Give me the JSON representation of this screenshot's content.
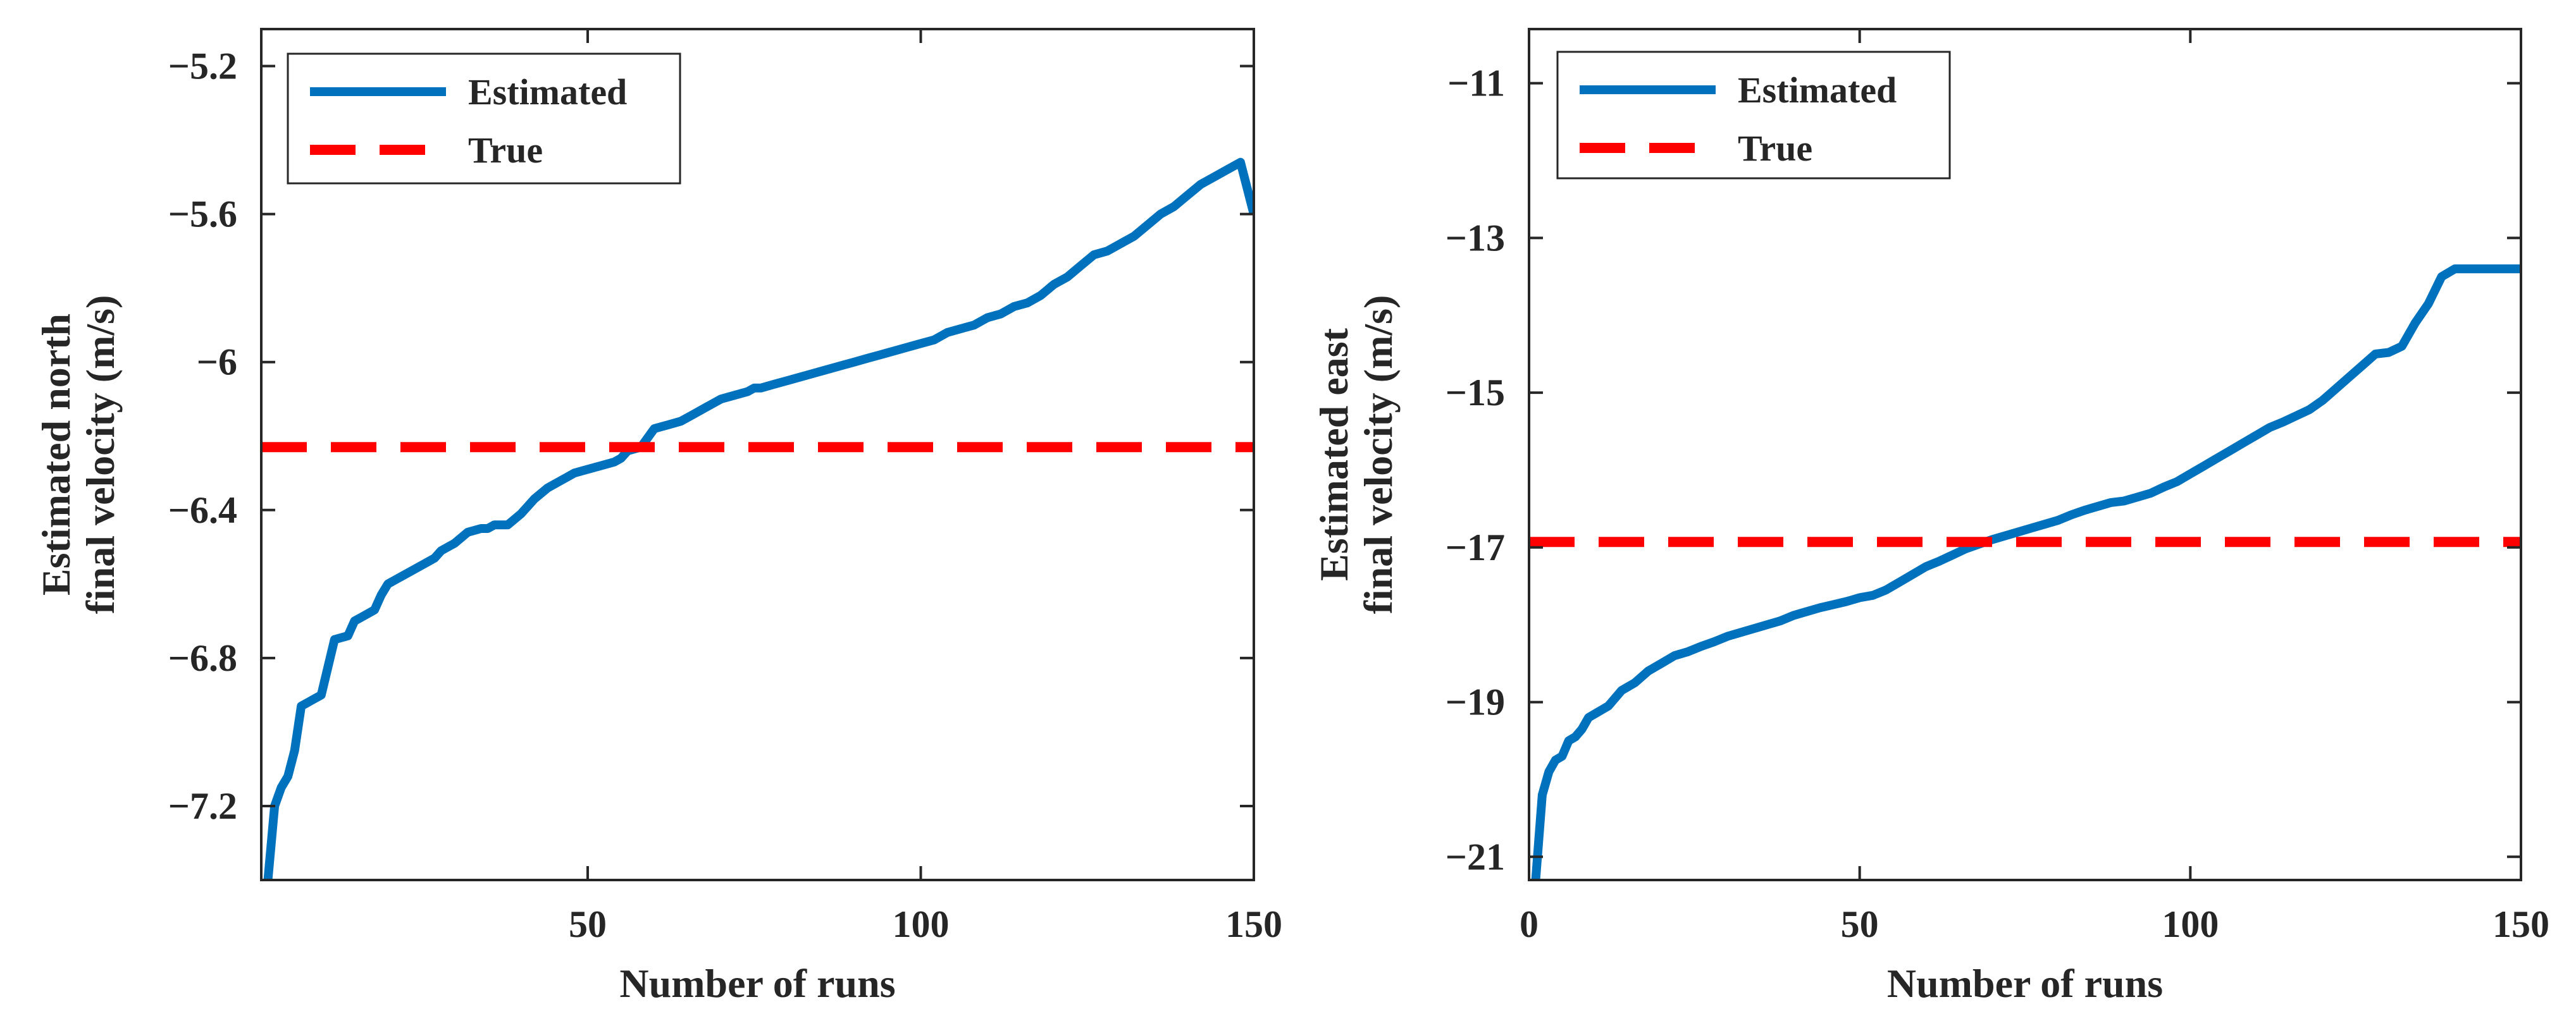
{
  "figure": {
    "colors": {
      "estimated": "#0072BD",
      "true": "#FF0000",
      "axis": "#262626",
      "background": "#FFFFFF"
    }
  },
  "chart_data": [
    {
      "type": "line",
      "title": "",
      "xlabel": "Number of runs",
      "ylabel_lines": [
        "Estimated north",
        "final velocity (m/s)"
      ],
      "xlim": [
        1,
        150
      ],
      "ylim": [
        -7.4,
        -5.1
      ],
      "xticks": [
        50,
        100,
        150
      ],
      "xtick_labels": [
        "50",
        "100",
        "150"
      ],
      "yticks": [
        -7.2,
        -6.8,
        -6.4,
        -6,
        -5.6,
        -5.2
      ],
      "ytick_labels": [
        "−7.2",
        "−6.8",
        "−6.4",
        "−6",
        "−5.6",
        "−5.2"
      ],
      "grid": false,
      "legend": {
        "position": "top-left",
        "entries": [
          "Estimated",
          "True"
        ]
      },
      "series": [
        {
          "name": "Estimated",
          "style": "solid",
          "x": [
            2,
            3,
            4,
            5,
            6,
            7,
            8,
            9,
            10,
            12,
            14,
            15,
            16,
            17,
            18,
            19,
            20,
            22,
            25,
            26,
            27,
            28,
            29,
            30,
            32,
            34,
            35,
            36,
            38,
            40,
            41,
            42,
            44,
            46,
            48,
            50,
            52,
            54,
            55,
            56,
            58,
            60,
            62,
            64,
            66,
            68,
            70,
            72,
            74,
            75,
            76,
            78,
            80,
            82,
            84,
            86,
            88,
            90,
            92,
            94,
            96,
            98,
            100,
            102,
            104,
            106,
            108,
            110,
            112,
            114,
            116,
            118,
            120,
            122,
            124,
            126,
            128,
            130,
            132,
            134,
            136,
            138,
            140,
            142,
            144,
            146,
            148,
            150
          ],
          "values": [
            -7.4,
            -7.2,
            -7.15,
            -7.12,
            -7.05,
            -6.93,
            -6.92,
            -6.91,
            -6.9,
            -6.75,
            -6.74,
            -6.7,
            -6.69,
            -6.68,
            -6.67,
            -6.63,
            -6.6,
            -6.58,
            -6.55,
            -6.54,
            -6.53,
            -6.51,
            -6.5,
            -6.49,
            -6.46,
            -6.45,
            -6.45,
            -6.44,
            -6.44,
            -6.41,
            -6.39,
            -6.37,
            -6.34,
            -6.32,
            -6.3,
            -6.29,
            -6.28,
            -6.27,
            -6.26,
            -6.24,
            -6.23,
            -6.18,
            -6.17,
            -6.16,
            -6.14,
            -6.12,
            -6.1,
            -6.09,
            -6.08,
            -6.07,
            -6.07,
            -6.06,
            -6.05,
            -6.04,
            -6.03,
            -6.02,
            -6.01,
            -6.0,
            -5.99,
            -5.98,
            -5.97,
            -5.96,
            -5.95,
            -5.94,
            -5.92,
            -5.91,
            -5.9,
            -5.88,
            -5.87,
            -5.85,
            -5.84,
            -5.82,
            -5.79,
            -5.77,
            -5.74,
            -5.71,
            -5.7,
            -5.68,
            -5.66,
            -5.63,
            -5.6,
            -5.58,
            -5.55,
            -5.52,
            -5.5,
            -5.48,
            -5.46,
            -5.6
          ]
        },
        {
          "name": "True",
          "style": "dashed",
          "x": [
            1,
            150
          ],
          "values": [
            -6.23,
            -6.23
          ]
        }
      ]
    },
    {
      "type": "line",
      "title": "",
      "xlabel": "Number of runs",
      "ylabel_lines": [
        "Estimated east",
        "final velocity (m/s)"
      ],
      "xlim": [
        0,
        150
      ],
      "ylim": [
        -21.3,
        -10.3
      ],
      "xticks": [
        0,
        50,
        100,
        150
      ],
      "xtick_labels": [
        "0",
        "50",
        "100",
        "150"
      ],
      "yticks": [
        -21,
        -19,
        -17,
        -15,
        -13,
        -11
      ],
      "ytick_labels": [
        "−21",
        "−19",
        "−17",
        "−15",
        "−13",
        "−11"
      ],
      "grid": false,
      "legend": {
        "position": "top-left",
        "entries": [
          "Estimated",
          "True"
        ]
      },
      "series": [
        {
          "name": "Estimated",
          "style": "solid",
          "x": [
            1,
            2,
            3,
            4,
            5,
            6,
            7,
            8,
            9,
            10,
            12,
            14,
            16,
            18,
            20,
            22,
            24,
            26,
            28,
            30,
            32,
            34,
            36,
            38,
            40,
            42,
            44,
            46,
            48,
            50,
            52,
            54,
            56,
            58,
            60,
            62,
            64,
            66,
            68,
            70,
            72,
            74,
            76,
            78,
            80,
            82,
            84,
            86,
            88,
            90,
            92,
            94,
            96,
            98,
            100,
            102,
            104,
            106,
            108,
            110,
            112,
            114,
            116,
            118,
            120,
            122,
            124,
            126,
            128,
            130,
            132,
            134,
            136,
            138,
            140,
            142,
            144,
            146,
            148,
            150
          ],
          "values": [
            -21.3,
            -20.2,
            -19.9,
            -19.75,
            -19.7,
            -19.5,
            -19.45,
            -19.35,
            -19.2,
            -19.15,
            -19.05,
            -18.85,
            -18.75,
            -18.6,
            -18.5,
            -18.4,
            -18.35,
            -18.28,
            -18.22,
            -18.15,
            -18.1,
            -18.05,
            -18.0,
            -17.95,
            -17.88,
            -17.83,
            -17.78,
            -17.74,
            -17.7,
            -17.65,
            -17.62,
            -17.55,
            -17.45,
            -17.35,
            -17.25,
            -17.18,
            -17.1,
            -17.02,
            -16.96,
            -16.9,
            -16.85,
            -16.8,
            -16.75,
            -16.7,
            -16.65,
            -16.58,
            -16.52,
            -16.47,
            -16.42,
            -16.4,
            -16.35,
            -16.3,
            -16.22,
            -16.15,
            -16.05,
            -15.95,
            -15.85,
            -15.75,
            -15.65,
            -15.55,
            -15.45,
            -15.38,
            -15.3,
            -15.22,
            -15.1,
            -14.95,
            -14.8,
            -14.65,
            -14.5,
            -14.48,
            -14.4,
            -14.1,
            -13.85,
            -13.5,
            -13.4,
            -13.4,
            -13.4,
            -13.4,
            -13.4,
            -13.4
          ]
        },
        {
          "name": "True",
          "style": "dashed",
          "x": [
            0,
            150
          ],
          "values": [
            -16.93,
            -16.93
          ]
        }
      ]
    }
  ]
}
